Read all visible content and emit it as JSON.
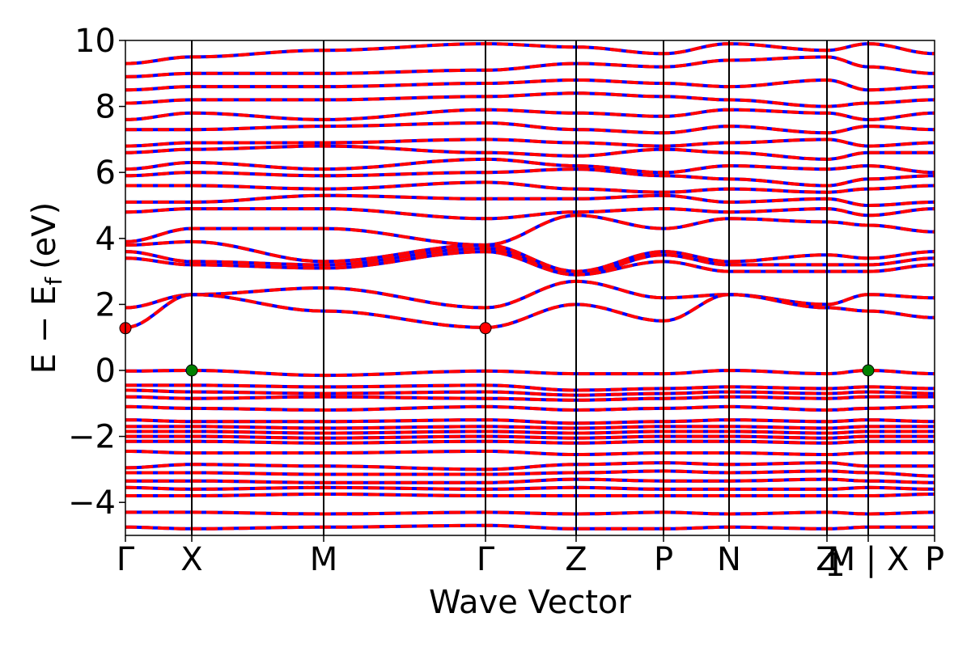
{
  "chart_data": {
    "type": "line",
    "title": "",
    "xlabel": "Wave Vector",
    "ylabel": "E − E_f (eV)",
    "ylabel_parts": {
      "main": "E − E",
      "subscript": "f",
      "unit": "(eV)"
    },
    "ylim": [
      -5,
      10
    ],
    "yticks": [
      -4,
      -2,
      0,
      2,
      4,
      6,
      8,
      10
    ],
    "ytick_labels": [
      "−4",
      "−2",
      "0",
      "2",
      "4",
      "6",
      "8",
      "10"
    ],
    "x_range": [
      0,
      1
    ],
    "kpath": [
      {
        "label": "Γ",
        "x": 0.0
      },
      {
        "label": "X",
        "x": 0.082
      },
      {
        "label": "M",
        "x": 0.245
      },
      {
        "label": "Γ",
        "x": 0.445
      },
      {
        "label": "Z",
        "x": 0.557
      },
      {
        "label": "P",
        "x": 0.665
      },
      {
        "label": "N",
        "x": 0.746
      },
      {
        "label": "Z",
        "x": 0.867
      },
      {
        "label": "M | X",
        "x": 0.918
      },
      {
        "label": "P",
        "x": 1.0
      }
    ],
    "path_breaks": [
      0.918
    ],
    "extra_label": {
      "text": "1",
      "x": 0.877
    },
    "series": [
      {
        "color": "#0000ff",
        "style": "solid"
      },
      {
        "color": "#ff0000",
        "style": "dashed"
      }
    ],
    "band_energies_eV": [
      [
        9.3,
        9.5,
        9.7,
        9.9,
        9.8,
        9.6,
        9.9,
        9.7,
        9.9,
        9.6
      ],
      [
        8.9,
        9.0,
        9.0,
        9.1,
        9.3,
        9.2,
        9.4,
        9.5,
        9.2,
        9.0
      ],
      [
        8.5,
        8.6,
        8.6,
        8.7,
        8.8,
        8.7,
        8.6,
        8.8,
        8.5,
        8.6
      ],
      [
        8.1,
        8.2,
        8.2,
        8.3,
        8.4,
        8.3,
        8.2,
        8.0,
        8.1,
        8.2
      ],
      [
        7.6,
        7.8,
        7.6,
        7.9,
        7.8,
        7.7,
        7.9,
        7.8,
        7.6,
        7.8
      ],
      [
        7.3,
        7.3,
        7.4,
        7.5,
        7.3,
        7.2,
        7.4,
        7.2,
        7.4,
        7.3
      ],
      [
        6.8,
        6.9,
        6.9,
        7.0,
        6.9,
        6.8,
        6.9,
        7.0,
        6.8,
        6.9
      ],
      [
        6.6,
        6.7,
        6.8,
        6.6,
        6.5,
        6.7,
        6.6,
        6.4,
        6.6,
        6.6
      ],
      [
        6.1,
        6.3,
        6.1,
        6.4,
        6.2,
        6.0,
        6.2,
        6.1,
        6.2,
        6.0
      ],
      [
        5.9,
        6.0,
        5.9,
        6.0,
        6.1,
        5.9,
        5.8,
        5.6,
        5.8,
        5.9
      ],
      [
        5.6,
        5.6,
        5.5,
        5.7,
        5.5,
        5.4,
        5.5,
        5.4,
        5.5,
        5.6
      ],
      [
        5.1,
        5.1,
        5.3,
        5.2,
        5.2,
        5.3,
        5.1,
        5.2,
        5.0,
        5.1
      ],
      [
        4.8,
        4.9,
        4.9,
        4.6,
        4.8,
        4.9,
        4.8,
        4.9,
        4.7,
        4.9
      ],
      [
        3.9,
        4.3,
        4.3,
        3.8,
        4.7,
        4.3,
        4.6,
        4.5,
        4.4,
        4.2
      ],
      [
        3.8,
        3.9,
        3.3,
        3.8,
        3.0,
        3.6,
        3.3,
        3.5,
        3.4,
        3.6
      ],
      [
        3.6,
        3.3,
        3.2,
        3.7,
        2.9,
        3.5,
        3.2,
        3.2,
        3.2,
        3.4
      ],
      [
        3.4,
        3.2,
        3.1,
        3.6,
        2.9,
        3.3,
        3.0,
        3.0,
        3.0,
        3.2
      ],
      [
        1.9,
        2.3,
        2.5,
        1.9,
        2.7,
        2.2,
        2.3,
        2.0,
        2.3,
        2.2
      ],
      [
        1.3,
        2.3,
        1.8,
        1.3,
        2.0,
        1.5,
        2.3,
        1.9,
        1.8,
        1.6
      ],
      [
        -0.02,
        0.0,
        -0.15,
        -0.02,
        -0.1,
        -0.1,
        0.0,
        -0.1,
        0.0,
        -0.1
      ],
      [
        -0.45,
        -0.45,
        -0.5,
        -0.45,
        -0.6,
        -0.55,
        -0.5,
        -0.55,
        -0.5,
        -0.55
      ],
      [
        -0.6,
        -0.65,
        -0.7,
        -0.65,
        -0.75,
        -0.7,
        -0.65,
        -0.7,
        -0.65,
        -0.7
      ],
      [
        -0.8,
        -0.85,
        -0.8,
        -0.85,
        -0.9,
        -0.85,
        -0.8,
        -0.85,
        -0.8,
        -0.8
      ],
      [
        -1.1,
        -1.15,
        -1.2,
        -1.1,
        -1.2,
        -1.15,
        -1.1,
        -1.2,
        -1.15,
        -1.1
      ],
      [
        -1.5,
        -1.55,
        -1.55,
        -1.5,
        -1.6,
        -1.55,
        -1.5,
        -1.55,
        -1.5,
        -1.55
      ],
      [
        -1.7,
        -1.7,
        -1.75,
        -1.7,
        -1.75,
        -1.7,
        -1.7,
        -1.75,
        -1.7,
        -1.7
      ],
      [
        -1.85,
        -1.85,
        -1.9,
        -1.85,
        -1.9,
        -1.85,
        -1.85,
        -1.9,
        -1.85,
        -1.85
      ],
      [
        -2.0,
        -2.0,
        -2.05,
        -2.0,
        -2.05,
        -2.0,
        -2.0,
        -2.05,
        -2.0,
        -2.0
      ],
      [
        -2.15,
        -2.15,
        -2.2,
        -2.15,
        -2.2,
        -2.15,
        -2.15,
        -2.2,
        -2.15,
        -2.15
      ],
      [
        -2.45,
        -2.5,
        -2.5,
        -2.45,
        -2.55,
        -2.5,
        -2.5,
        -2.55,
        -2.5,
        -2.5
      ],
      [
        -2.95,
        -2.85,
        -2.9,
        -3.0,
        -2.85,
        -2.8,
        -2.85,
        -2.8,
        -2.9,
        -2.9
      ],
      [
        -3.1,
        -3.1,
        -3.15,
        -3.15,
        -3.1,
        -3.05,
        -3.1,
        -3.05,
        -3.1,
        -3.2
      ],
      [
        -3.35,
        -3.35,
        -3.4,
        -3.4,
        -3.3,
        -3.35,
        -3.35,
        -3.3,
        -3.35,
        -3.4
      ],
      [
        -3.55,
        -3.6,
        -3.55,
        -3.6,
        -3.55,
        -3.6,
        -3.6,
        -3.6,
        -3.55,
        -3.6
      ],
      [
        -3.8,
        -3.8,
        -3.75,
        -3.8,
        -3.8,
        -3.8,
        -3.8,
        -3.8,
        -3.8,
        -3.75
      ],
      [
        -4.3,
        -4.3,
        -4.35,
        -4.3,
        -4.35,
        -4.3,
        -4.35,
        -4.3,
        -4.35,
        -4.3
      ],
      [
        -4.75,
        -4.8,
        -4.75,
        -4.7,
        -4.8,
        -4.8,
        -4.75,
        -4.8,
        -4.75,
        -4.75
      ]
    ],
    "markers": [
      {
        "x": 0.0,
        "y": 1.28,
        "color": "#ff0000"
      },
      {
        "x": 0.445,
        "y": 1.28,
        "color": "#ff0000"
      },
      {
        "x": 0.082,
        "y": 0.0,
        "color": "#008000"
      },
      {
        "x": 0.918,
        "y": 0.0,
        "color": "#008000"
      }
    ],
    "grid": false,
    "legend": "none"
  }
}
